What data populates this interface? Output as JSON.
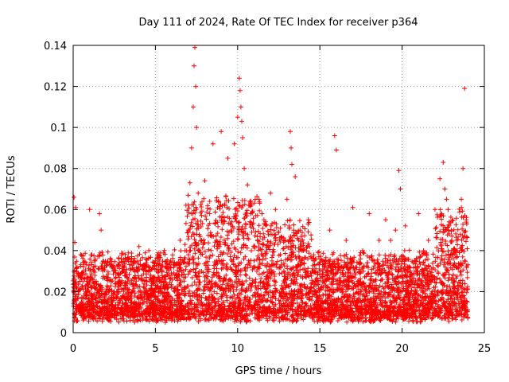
{
  "chart_data": {
    "type": "scatter",
    "title": "Day 111 of 2024, Rate Of TEC Index for receiver p364",
    "xlabel": "GPS time / hours",
    "ylabel": "ROTI / TECUs",
    "xlim": [
      0,
      25
    ],
    "ylim": [
      0,
      0.14
    ],
    "x_ticks": [
      0,
      5,
      10,
      15,
      20,
      25
    ],
    "x_tick_labels": [
      "0",
      "5",
      "10",
      "15",
      "20",
      "25"
    ],
    "y_ticks": [
      0,
      0.02,
      0.04,
      0.06,
      0.08,
      0.1,
      0.12,
      0.14
    ],
    "y_tick_labels": [
      "0",
      "0.02",
      "0.04",
      "0.06",
      "0.08",
      "0.1",
      "0.12",
      "0.14"
    ],
    "grid": true,
    "marker": "+",
    "color": "#ff0000",
    "series": [
      {
        "name": "ROTI",
        "x": [
          0.05,
          0.1,
          0.15,
          0.2,
          0.3,
          0.4,
          0.5,
          0.8,
          1.0,
          1.1,
          1.3,
          1.6,
          1.7,
          1.8,
          2.0,
          2.3,
          2.6,
          3.0,
          3.3,
          3.6,
          4.0,
          4.3,
          4.6,
          4.8,
          5.0,
          5.3,
          5.6,
          6.0,
          6.3,
          6.5,
          6.8,
          7.0,
          7.1,
          7.2,
          7.3,
          7.35,
          7.4,
          7.45,
          7.5,
          7.6,
          7.8,
          8.0,
          8.3,
          8.5,
          8.7,
          9.0,
          9.2,
          9.4,
          9.6,
          9.8,
          10.0,
          10.1,
          10.15,
          10.2,
          10.25,
          10.3,
          10.4,
          10.6,
          10.8,
          11.0,
          11.3,
          11.6,
          12.0,
          12.3,
          12.6,
          13.0,
          13.2,
          13.25,
          13.3,
          13.5,
          13.8,
          14.0,
          14.3,
          14.6,
          15.0,
          15.3,
          15.6,
          15.9,
          16.0,
          16.3,
          16.6,
          17.0,
          17.3,
          17.6,
          18.0,
          18.3,
          18.6,
          19.0,
          19.3,
          19.6,
          19.8,
          19.9,
          20.2,
          20.5,
          20.8,
          21.0,
          21.3,
          21.6,
          22.0,
          22.3,
          22.5,
          22.6,
          22.7,
          22.8,
          23.0,
          23.3,
          23.6,
          23.7,
          23.8,
          23.9
        ],
        "y": [
          0.066,
          0.044,
          0.061,
          0.03,
          0.02,
          0.025,
          0.015,
          0.018,
          0.06,
          0.022,
          0.035,
          0.058,
          0.05,
          0.03,
          0.02,
          0.016,
          0.027,
          0.018,
          0.036,
          0.02,
          0.042,
          0.022,
          0.04,
          0.018,
          0.035,
          0.012,
          0.005,
          0.028,
          0.018,
          0.045,
          0.04,
          0.05,
          0.073,
          0.09,
          0.11,
          0.13,
          0.139,
          0.12,
          0.1,
          0.068,
          0.045,
          0.074,
          0.058,
          0.092,
          0.045,
          0.098,
          0.062,
          0.085,
          0.05,
          0.092,
          0.105,
          0.124,
          0.118,
          0.11,
          0.103,
          0.095,
          0.08,
          0.072,
          0.058,
          0.035,
          0.065,
          0.055,
          0.068,
          0.06,
          0.038,
          0.065,
          0.098,
          0.09,
          0.082,
          0.076,
          0.05,
          0.04,
          0.055,
          0.035,
          0.03,
          0.025,
          0.05,
          0.096,
          0.089,
          0.032,
          0.045,
          0.061,
          0.025,
          0.04,
          0.058,
          0.035,
          0.045,
          0.055,
          0.045,
          0.05,
          0.079,
          0.07,
          0.052,
          0.03,
          0.035,
          0.058,
          0.04,
          0.045,
          0.06,
          0.075,
          0.083,
          0.07,
          0.065,
          0.06,
          0.05,
          0.045,
          0.065,
          0.08,
          0.119,
          0.055
        ]
      }
    ],
    "baseline_band": {
      "description": "dense cloud of low ROTI values",
      "y_min": 0.005,
      "y_max": 0.035,
      "x_range": [
        0,
        24
      ]
    }
  }
}
